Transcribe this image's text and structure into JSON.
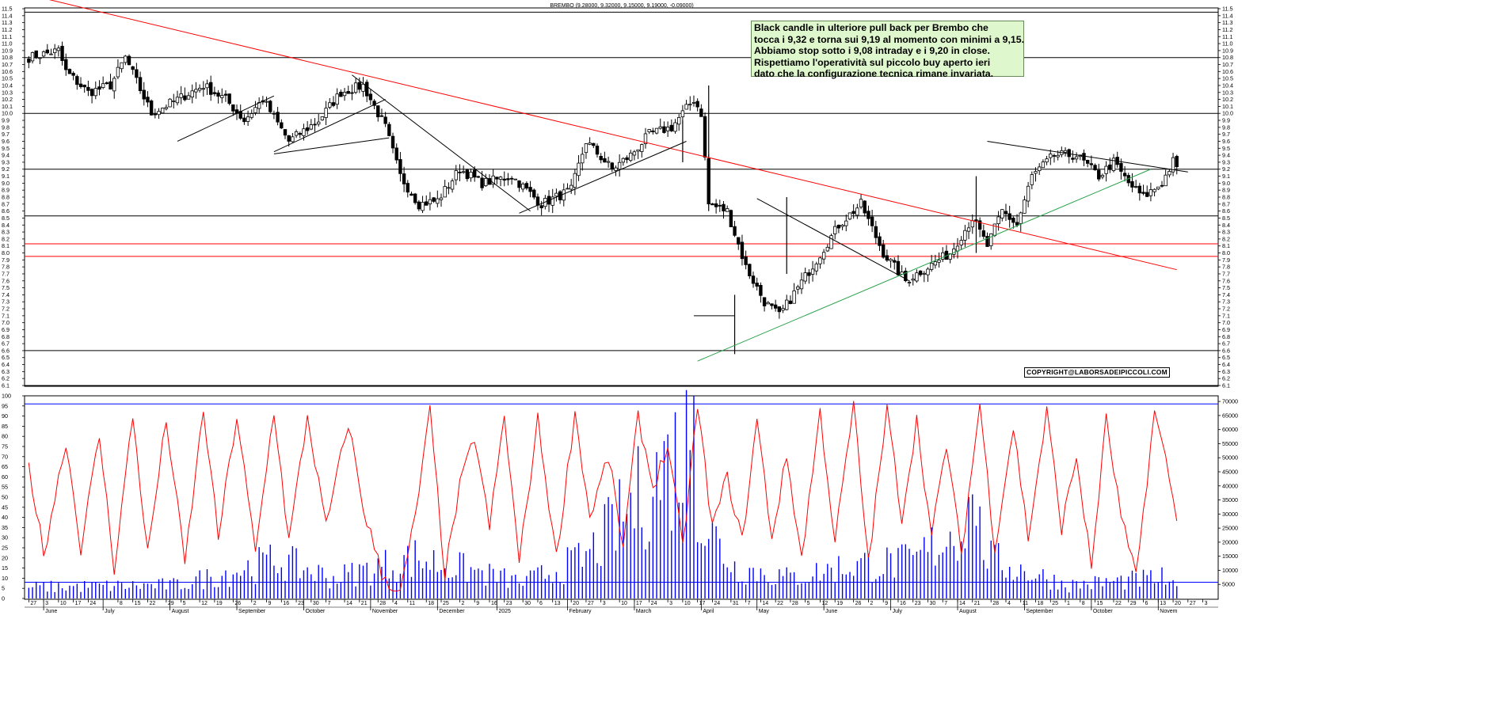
{
  "chart_data": [
    {
      "type": "candlestick",
      "title": "BREMBO (9.28000, 9.32000, 9.15000, 9.19000, -0.09000)",
      "ylim": [
        6.1,
        11.5
      ],
      "y_ticks": [
        "6.1",
        "6.2",
        "6.3",
        "6.4",
        "6.5",
        "6.6",
        "6.7",
        "6.8",
        "6.9",
        "7.0",
        "7.1",
        "7.2",
        "7.3",
        "7.4",
        "7.5",
        "7.6",
        "7.7",
        "7.8",
        "7.9",
        "8.0",
        "8.1",
        "8.2",
        "8.3",
        "8.4",
        "8.5",
        "8.6",
        "8.7",
        "8.8",
        "8.9",
        "9.0",
        "9.1",
        "9.2",
        "9.3",
        "9.4",
        "9.5",
        "9.6",
        "9.7",
        "9.8",
        "9.9",
        "10.0",
        "10.1",
        "10.2",
        "10.3",
        "10.4",
        "10.5",
        "10.6",
        "10.7",
        "10.8",
        "10.9",
        "11.0",
        "11.1",
        "11.2",
        "11.3",
        "11.4",
        "11.5"
      ],
      "horizontal_levels": [
        {
          "value": 11.45,
          "color": "#000000"
        },
        {
          "value": 10.8,
          "color": "#000000"
        },
        {
          "value": 10.0,
          "color": "#000000"
        },
        {
          "value": 9.2,
          "color": "#000000"
        },
        {
          "value": 8.53,
          "color": "#000000"
        },
        {
          "value": 8.13,
          "color": "#ff0000"
        },
        {
          "value": 7.95,
          "color": "#ff0000"
        },
        {
          "value": 6.6,
          "color": "#000000"
        },
        {
          "value": 6.1,
          "color": "#000000"
        }
      ],
      "waypoints": [
        [
          0,
          10.8
        ],
        [
          8,
          10.9
        ],
        [
          10,
          10.6
        ],
        [
          16,
          10.3
        ],
        [
          22,
          10.4
        ],
        [
          26,
          10.8
        ],
        [
          33,
          10.0
        ],
        [
          40,
          10.2
        ],
        [
          47,
          10.4
        ],
        [
          53,
          10.2
        ],
        [
          58,
          9.9
        ],
        [
          63,
          10.2
        ],
        [
          70,
          9.6
        ],
        [
          78,
          9.9
        ],
        [
          84,
          10.3
        ],
        [
          90,
          10.4
        ],
        [
          96,
          9.8
        ],
        [
          100,
          9.1
        ],
        [
          105,
          8.7
        ],
        [
          110,
          8.75
        ],
        [
          116,
          9.2
        ],
        [
          122,
          9.0
        ],
        [
          130,
          9.1
        ],
        [
          138,
          8.7
        ],
        [
          146,
          8.9
        ],
        [
          150,
          9.6
        ],
        [
          157,
          9.2
        ],
        [
          162,
          9.4
        ],
        [
          167,
          9.7
        ],
        [
          173,
          9.8
        ],
        [
          179,
          10.2
        ],
        [
          181,
          10.0
        ],
        [
          183,
          8.7
        ],
        [
          188,
          8.6
        ],
        [
          193,
          7.8
        ],
        [
          198,
          7.3
        ],
        [
          202,
          7.1
        ],
        [
          207,
          7.5
        ],
        [
          212,
          7.9
        ],
        [
          218,
          8.4
        ],
        [
          224,
          8.7
        ],
        [
          230,
          8.0
        ],
        [
          236,
          7.6
        ],
        [
          242,
          7.8
        ],
        [
          248,
          8.0
        ],
        [
          254,
          8.5
        ],
        [
          258,
          8.1
        ],
        [
          262,
          8.6
        ],
        [
          266,
          8.4
        ],
        [
          270,
          9.1
        ],
        [
          276,
          9.4
        ],
        [
          282,
          9.4
        ],
        [
          288,
          9.1
        ],
        [
          292,
          9.3
        ],
        [
          296,
          9.0
        ],
        [
          300,
          8.8
        ],
        [
          305,
          9.0
        ],
        [
          308,
          9.31
        ],
        [
          309,
          9.19
        ]
      ],
      "trendlines": [
        {
          "from": [
            0,
            11.7
          ],
          "to": [
            309,
            7.76
          ],
          "color": "#ff0000"
        },
        {
          "from": [
            40,
            9.6
          ],
          "to": [
            66,
            10.25
          ],
          "color": "#000000"
        },
        {
          "from": [
            66,
            9.45
          ],
          "to": [
            96,
            10.2
          ],
          "color": "#000000"
        },
        {
          "from": [
            66,
            9.42
          ],
          "to": [
            97,
            9.65
          ],
          "color": "#000000"
        },
        {
          "from": [
            87,
            10.55
          ],
          "to": [
            135,
            8.6
          ],
          "color": "#000000"
        },
        {
          "from": [
            132,
            8.57
          ],
          "to": [
            177,
            9.6
          ],
          "color": "#000000"
        },
        {
          "from": [
            179,
            7.1
          ],
          "to": [
            190,
            7.1
          ],
          "color": "#000000"
        },
        {
          "from": [
            196,
            8.78
          ],
          "to": [
            237,
            7.6
          ],
          "color": "#000000"
        },
        {
          "from": [
            180,
            6.45
          ],
          "to": [
            302,
            9.2
          ],
          "color": "#2aa24a"
        },
        {
          "from": [
            258,
            9.6
          ],
          "to": [
            312,
            9.16
          ],
          "color": "#000000"
        }
      ],
      "notes": [
        "Black candle in ulteriore pull back per Brembo che",
        "tocca i 9,32 e torna sui 9,19 al momento con minimi a 9,15.",
        "Abbiamo stop sotto i 9,08 intraday e i 9,20 in close.",
        "Rispettiamo l'operatività sul piccolo buy aperto ieri",
        "dato che la configurazione tecnica rimane invariata."
      ],
      "copyright": "COPYRIGHT@LABORSADEIPICCOLI.COM"
    },
    {
      "type": "line+bar",
      "left_ylim": [
        0,
        100
      ],
      "left_y_ticks": [
        "0",
        "5",
        "10",
        "15",
        "20",
        "25",
        "30",
        "35",
        "40",
        "45",
        "50",
        "55",
        "60",
        "65",
        "70",
        "75",
        "80",
        "85",
        "90",
        "95",
        "100"
      ],
      "right_ylim": [
        0,
        72000
      ],
      "right_y_ticks": [
        "5000",
        "10000",
        "15000",
        "20000",
        "25000",
        "30000",
        "35000",
        "40000",
        "45000",
        "50000",
        "55000",
        "60000",
        "65000",
        "70000"
      ],
      "reference_levels": [
        {
          "value": 96,
          "color": "#0000ff"
        },
        {
          "value": 8,
          "color": "#0000ff"
        }
      ],
      "series": [
        {
          "color": "#ff0000",
          "values_desc": "stochastic oscillator",
          "waypoints": [
            [
              0,
              66
            ],
            [
              4,
              22
            ],
            [
              10,
              78
            ],
            [
              14,
              25
            ],
            [
              19,
              80
            ],
            [
              23,
              15
            ],
            [
              28,
              90
            ],
            [
              32,
              22
            ],
            [
              37,
              88
            ],
            [
              42,
              17
            ],
            [
              47,
              93
            ],
            [
              51,
              30
            ],
            [
              56,
              90
            ],
            [
              61,
              22
            ],
            [
              66,
              93
            ],
            [
              70,
              28
            ],
            [
              75,
              90
            ],
            [
              80,
              35
            ],
            [
              86,
              87
            ],
            [
              90,
              45
            ],
            [
              95,
              12
            ],
            [
              100,
              2
            ],
            [
              104,
              40
            ],
            [
              108,
              92
            ],
            [
              112,
              12
            ],
            [
              116,
              55
            ],
            [
              120,
              80
            ],
            [
              124,
              35
            ],
            [
              128,
              90
            ],
            [
              132,
              18
            ],
            [
              137,
              88
            ],
            [
              142,
              20
            ],
            [
              147,
              92
            ],
            [
              151,
              40
            ],
            [
              156,
              70
            ],
            [
              160,
              25
            ],
            [
              164,
              90
            ],
            [
              168,
              55
            ],
            [
              172,
              75
            ],
            [
              176,
              25
            ],
            [
              180,
              95
            ],
            [
              184,
              35
            ],
            [
              188,
              60
            ],
            [
              192,
              28
            ],
            [
              196,
              88
            ],
            [
              200,
              30
            ],
            [
              204,
              70
            ],
            [
              208,
              20
            ],
            [
              213,
              92
            ],
            [
              217,
              28
            ],
            [
              222,
              95
            ],
            [
              226,
              18
            ],
            [
              231,
              93
            ],
            [
              235,
              40
            ],
            [
              239,
              88
            ],
            [
              243,
              30
            ],
            [
              247,
              76
            ],
            [
              251,
              22
            ],
            [
              256,
              96
            ],
            [
              260,
              25
            ],
            [
              265,
              85
            ],
            [
              269,
              30
            ],
            [
              274,
              92
            ],
            [
              278,
              35
            ],
            [
              282,
              70
            ],
            [
              286,
              15
            ],
            [
              290,
              88
            ],
            [
              294,
              40
            ],
            [
              298,
              10
            ],
            [
              303,
              92
            ],
            [
              307,
              60
            ],
            [
              309,
              37
            ]
          ]
        }
      ],
      "volume_waypoints": [
        [
          0,
          5000
        ],
        [
          40,
          6000
        ],
        [
          67,
          17000
        ],
        [
          82,
          9000
        ],
        [
          104,
          18000
        ],
        [
          133,
          7000
        ],
        [
          150,
          18000
        ],
        [
          179,
          72000
        ],
        [
          181,
          35000
        ],
        [
          190,
          14000
        ],
        [
          205,
          9000
        ],
        [
          222,
          15000
        ],
        [
          238,
          16000
        ],
        [
          254,
          37000
        ],
        [
          259,
          17000
        ],
        [
          280,
          6000
        ],
        [
          305,
          9000
        ],
        [
          309,
          4000
        ]
      ],
      "x_labels": [
        {
          "i": 0,
          "t": "27"
        },
        {
          "i": 4,
          "t": "3"
        },
        {
          "i": 8,
          "t": "10"
        },
        {
          "i": 12,
          "t": "17"
        },
        {
          "i": 16,
          "t": "24"
        },
        {
          "i": 24,
          "t": "8"
        },
        {
          "i": 28,
          "t": "15"
        },
        {
          "i": 32,
          "t": "22"
        },
        {
          "i": 37,
          "t": "29"
        },
        {
          "i": 41,
          "t": "5"
        },
        {
          "i": 46,
          "t": "12"
        },
        {
          "i": 50,
          "t": "19"
        },
        {
          "i": 55,
          "t": "26"
        },
        {
          "i": 60,
          "t": "2"
        },
        {
          "i": 64,
          "t": "9"
        },
        {
          "i": 68,
          "t": "16"
        },
        {
          "i": 72,
          "t": "23"
        },
        {
          "i": 76,
          "t": "30"
        },
        {
          "i": 80,
          "t": "7"
        },
        {
          "i": 85,
          "t": "14"
        },
        {
          "i": 89,
          "t": "21"
        },
        {
          "i": 94,
          "t": "28"
        },
        {
          "i": 98,
          "t": "4"
        },
        {
          "i": 102,
          "t": "11"
        },
        {
          "i": 107,
          "t": "18"
        },
        {
          "i": 111,
          "t": "25"
        },
        {
          "i": 116,
          "t": "2"
        },
        {
          "i": 120,
          "t": "9"
        },
        {
          "i": 124,
          "t": "16"
        },
        {
          "i": 128,
          "t": "23"
        },
        {
          "i": 133,
          "t": "30"
        },
        {
          "i": 137,
          "t": "6"
        },
        {
          "i": 141,
          "t": "13"
        },
        {
          "i": 146,
          "t": "20"
        },
        {
          "i": 150,
          "t": "27"
        },
        {
          "i": 154,
          "t": "3"
        },
        {
          "i": 159,
          "t": "10"
        },
        {
          "i": 163,
          "t": "17"
        },
        {
          "i": 167,
          "t": "24"
        },
        {
          "i": 172,
          "t": "3"
        },
        {
          "i": 176,
          "t": "10"
        },
        {
          "i": 180,
          "t": "17"
        },
        {
          "i": 184,
          "t": "24"
        },
        {
          "i": 189,
          "t": "31"
        },
        {
          "i": 193,
          "t": "7"
        },
        {
          "i": 197,
          "t": "14"
        },
        {
          "i": 201,
          "t": "22"
        },
        {
          "i": 205,
          "t": "28"
        },
        {
          "i": 209,
          "t": "5"
        },
        {
          "i": 213,
          "t": "12"
        },
        {
          "i": 217,
          "t": "19"
        },
        {
          "i": 222,
          "t": "26"
        },
        {
          "i": 226,
          "t": "2"
        },
        {
          "i": 230,
          "t": "9"
        },
        {
          "i": 234,
          "t": "16"
        },
        {
          "i": 238,
          "t": "23"
        },
        {
          "i": 242,
          "t": "30"
        },
        {
          "i": 246,
          "t": "7"
        },
        {
          "i": 250,
          "t": "14"
        },
        {
          "i": 254,
          "t": "21"
        },
        {
          "i": 259,
          "t": "28"
        },
        {
          "i": 263,
          "t": "4"
        },
        {
          "i": 267,
          "t": "11"
        },
        {
          "i": 271,
          "t": "18"
        },
        {
          "i": 275,
          "t": "25"
        },
        {
          "i": 279,
          "t": "1"
        },
        {
          "i": 283,
          "t": "8"
        },
        {
          "i": 287,
          "t": "15"
        },
        {
          "i": 292,
          "t": "22"
        },
        {
          "i": 296,
          "t": "29"
        },
        {
          "i": 300,
          "t": "6"
        },
        {
          "i": 304,
          "t": "13"
        },
        {
          "i": 308,
          "t": "20"
        },
        {
          "i": 312,
          "t": "27"
        },
        {
          "i": 316,
          "t": "3"
        }
      ],
      "x_month_labels": [
        {
          "i": 4,
          "t": "June"
        },
        {
          "i": 20,
          "t": "July"
        },
        {
          "i": 38,
          "t": "August"
        },
        {
          "i": 56,
          "t": "September"
        },
        {
          "i": 74,
          "t": "October"
        },
        {
          "i": 92,
          "t": "November"
        },
        {
          "i": 110,
          "t": "December"
        },
        {
          "i": 126,
          "t": "2025"
        },
        {
          "i": 145,
          "t": "February"
        },
        {
          "i": 163,
          "t": "March"
        },
        {
          "i": 181,
          "t": "April"
        },
        {
          "i": 196,
          "t": "May"
        },
        {
          "i": 214,
          "t": "June"
        },
        {
          "i": 232,
          "t": "July"
        },
        {
          "i": 250,
          "t": "August"
        },
        {
          "i": 268,
          "t": "September"
        },
        {
          "i": 286,
          "t": "October"
        },
        {
          "i": 304,
          "t": "Novem"
        }
      ]
    }
  ]
}
